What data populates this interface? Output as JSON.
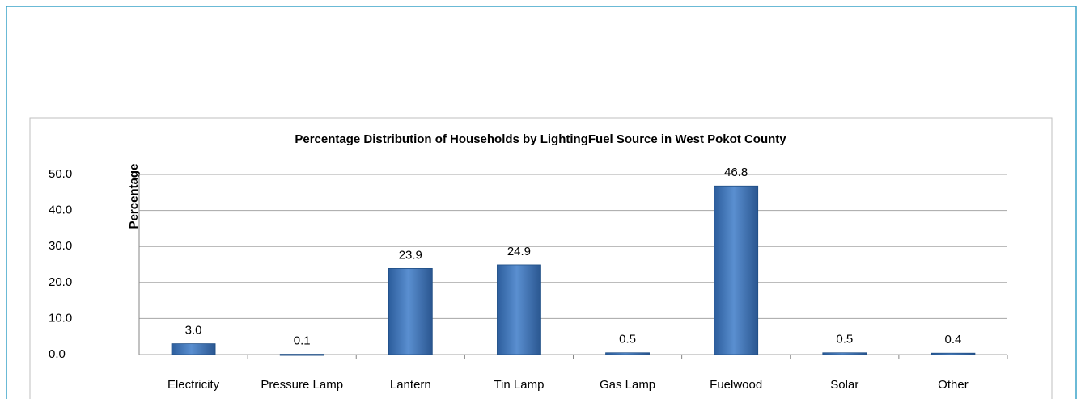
{
  "chart_data": {
    "type": "bar",
    "title": "Percentage Distribution of Households by LightingFuel Source in West Pokot County",
    "y_label": "Percentage",
    "categories": [
      "Electricity",
      "Pressure Lamp",
      "Lantern",
      "Tin Lamp",
      "Gas Lamp",
      "Fuelwood",
      "Solar",
      "Other"
    ],
    "values": [
      3.0,
      0.1,
      23.9,
      24.9,
      0.5,
      46.8,
      0.5,
      0.4
    ],
    "value_labels": [
      "3.0",
      "0.1",
      "23.9",
      "24.9",
      "0.5",
      "46.8",
      "0.5",
      "0.4"
    ],
    "color": "#4a7ebb",
    "ylim": [
      0,
      50
    ],
    "yticks": [
      {
        "value": 0,
        "label": "0.0"
      },
      {
        "value": 10,
        "label": "10.0"
      },
      {
        "value": 20,
        "label": "20.0"
      },
      {
        "value": 30,
        "label": "30.0"
      },
      {
        "value": 40,
        "label": "40.0"
      },
      {
        "value": 50,
        "label": "50.0"
      }
    ],
    "grid": true
  }
}
